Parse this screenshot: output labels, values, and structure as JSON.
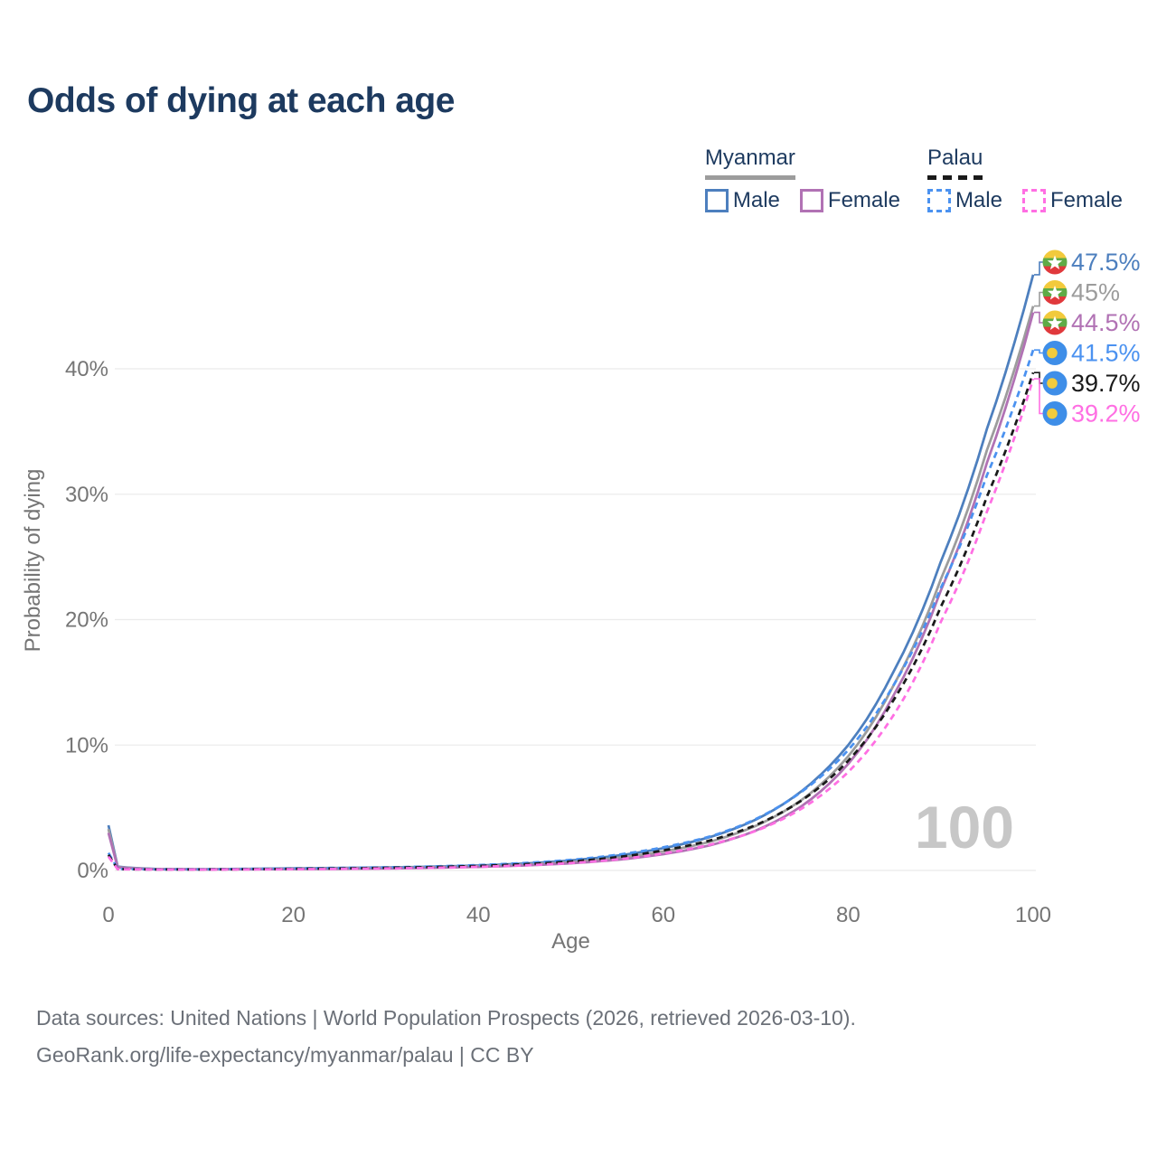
{
  "title": "Odds of dying at each age",
  "legend": {
    "groups": [
      {
        "country": "Myanmar",
        "line_style": "solid",
        "underline_color": "#9c9c9c",
        "items": [
          {
            "label": "Male",
            "color": "#4d7fbe",
            "dashed": false
          },
          {
            "label": "Female",
            "color": "#b172b4",
            "dashed": false
          }
        ]
      },
      {
        "country": "Palau",
        "line_style": "dashed",
        "underline_color": "#1a1a1a",
        "items": [
          {
            "label": "Male",
            "color": "#4b92f0",
            "dashed": true
          },
          {
            "label": "Female",
            "color": "#ff6fe3",
            "dashed": true
          }
        ]
      }
    ]
  },
  "footer": {
    "line1": "Data sources: United Nations | World Population Prospects (2026, retrieved 2026-03-10).",
    "line2": "GeoRank.org/life-expectancy/myanmar/palau | CC BY"
  },
  "chart_data": {
    "type": "line",
    "title": "Odds of dying at each age",
    "xlabel": "Age",
    "ylabel": "Probability of dying",
    "xlim": [
      0,
      100
    ],
    "ylim_percent": [
      0,
      48
    ],
    "grid": "horizontal",
    "age_counter_label": "100",
    "x_ticks": [
      0,
      20,
      40,
      60,
      80,
      100
    ],
    "y_ticks": [
      {
        "value": 0,
        "label": "0%"
      },
      {
        "value": 10,
        "label": "10%"
      },
      {
        "value": 20,
        "label": "20%"
      },
      {
        "value": 30,
        "label": "30%"
      },
      {
        "value": 40,
        "label": "40%"
      }
    ],
    "x": [
      0,
      1,
      5,
      10,
      15,
      20,
      25,
      30,
      35,
      40,
      45,
      50,
      55,
      60,
      65,
      70,
      75,
      80,
      85,
      90,
      95,
      100
    ],
    "series": [
      {
        "name": "Myanmar Male",
        "color": "#4d7fbe",
        "dash": "solid",
        "flag": "myanmar-flag-icon",
        "end_label": "47.5%",
        "end_label_color": "#4d7fbe",
        "values": [
          3.6,
          0.3,
          0.12,
          0.1,
          0.13,
          0.17,
          0.2,
          0.24,
          0.3,
          0.4,
          0.55,
          0.8,
          1.18,
          1.78,
          2.65,
          4.05,
          6.35,
          10.0,
          16.0,
          24.6,
          35.2,
          47.5
        ]
      },
      {
        "name": "Myanmar (both sexes)",
        "color": "#9c9c9c",
        "dash": "solid",
        "flag": "myanmar-flag-icon",
        "end_label": "45%",
        "end_label_color": "#9c9c9c",
        "values": [
          3.3,
          0.27,
          0.11,
          0.09,
          0.11,
          0.14,
          0.17,
          0.2,
          0.26,
          0.34,
          0.47,
          0.68,
          1.0,
          1.52,
          2.28,
          3.55,
          5.65,
          9.1,
          14.9,
          23.2,
          33.5,
          45.0
        ]
      },
      {
        "name": "Myanmar Female",
        "color": "#b172b4",
        "dash": "solid",
        "flag": "myanmar-flag-icon",
        "end_label": "44.5%",
        "end_label_color": "#b172b4",
        "values": [
          3.0,
          0.24,
          0.1,
          0.08,
          0.09,
          0.11,
          0.13,
          0.16,
          0.21,
          0.28,
          0.4,
          0.57,
          0.85,
          1.3,
          2.0,
          3.18,
          5.15,
          8.5,
          14.1,
          22.3,
          32.5,
          44.5
        ]
      },
      {
        "name": "Palau Male",
        "color": "#4b92f0",
        "dash": "dashed",
        "flag": "palau-flag-icon",
        "end_label": "41.5%",
        "end_label_color": "#4b92f0",
        "values": [
          1.4,
          0.12,
          0.09,
          0.09,
          0.12,
          0.16,
          0.2,
          0.25,
          0.32,
          0.43,
          0.6,
          0.84,
          1.25,
          1.85,
          2.7,
          4.1,
          6.3,
          9.6,
          14.9,
          22.5,
          31.5,
          41.5
        ]
      },
      {
        "name": "Palau (both sexes)",
        "color": "#1a1a1a",
        "dash": "dashed",
        "flag": "palau-flag-icon",
        "end_label": "39.7%",
        "end_label_color": "#1a1a1a",
        "values": [
          1.25,
          0.11,
          0.08,
          0.08,
          0.1,
          0.13,
          0.16,
          0.21,
          0.27,
          0.36,
          0.5,
          0.71,
          1.06,
          1.6,
          2.38,
          3.62,
          5.6,
          8.75,
          13.7,
          21.0,
          29.8,
          39.7
        ]
      },
      {
        "name": "Palau Female",
        "color": "#ff6fe3",
        "dash": "dashed",
        "flag": "palau-flag-icon",
        "end_label": "39.2%",
        "end_label_color": "#ff6fe3",
        "values": [
          1.1,
          0.1,
          0.07,
          0.07,
          0.08,
          0.1,
          0.12,
          0.16,
          0.21,
          0.29,
          0.41,
          0.59,
          0.88,
          1.36,
          2.05,
          3.15,
          4.95,
          7.85,
          12.5,
          19.8,
          28.6,
          39.2
        ]
      }
    ]
  }
}
